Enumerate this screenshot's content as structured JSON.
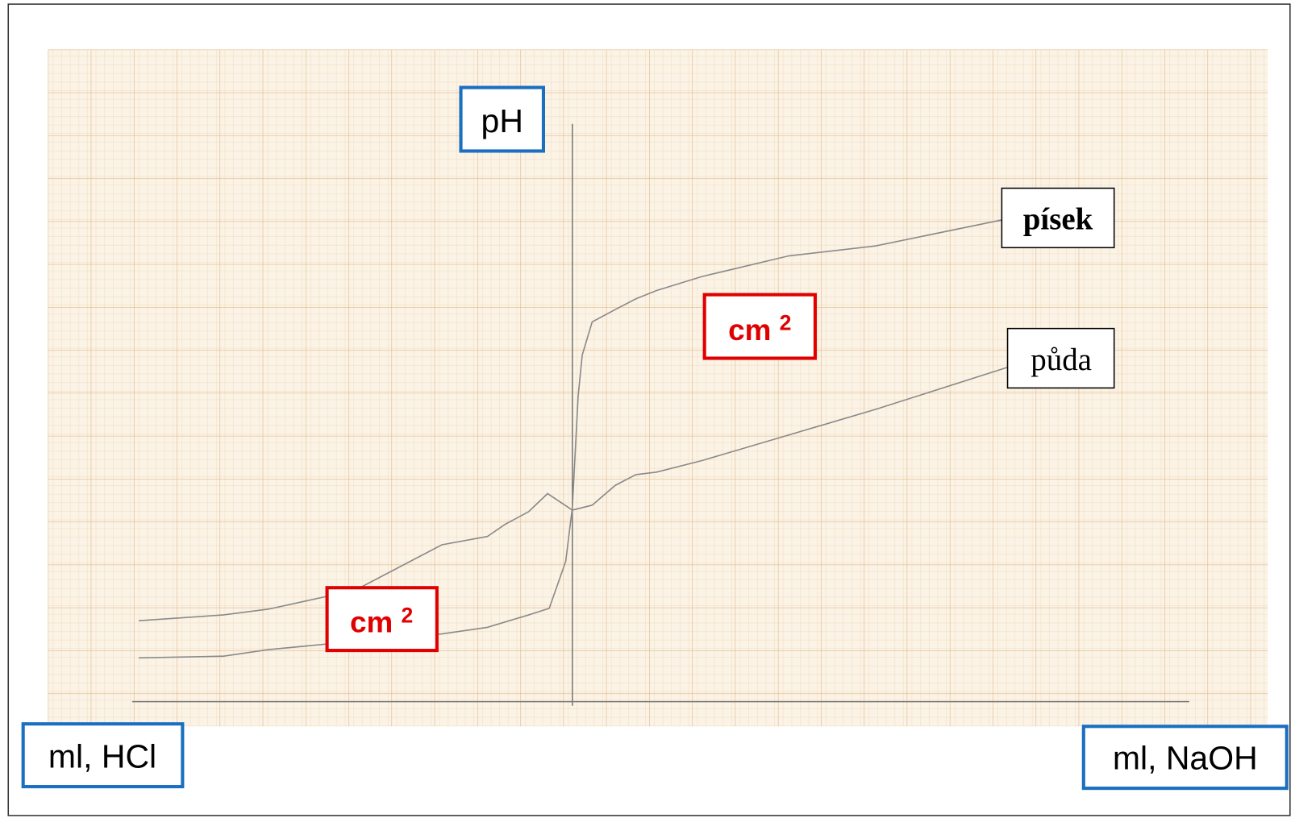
{
  "axis_labels": {
    "y": "pH",
    "x_left": "ml, HCl",
    "x_right": "ml, NaOH"
  },
  "curve_labels": {
    "upper": "písek",
    "lower": "půda"
  },
  "area_labels": [
    {
      "text": "cm",
      "superscript": "2"
    },
    {
      "text": "cm",
      "superscript": "2"
    }
  ]
}
